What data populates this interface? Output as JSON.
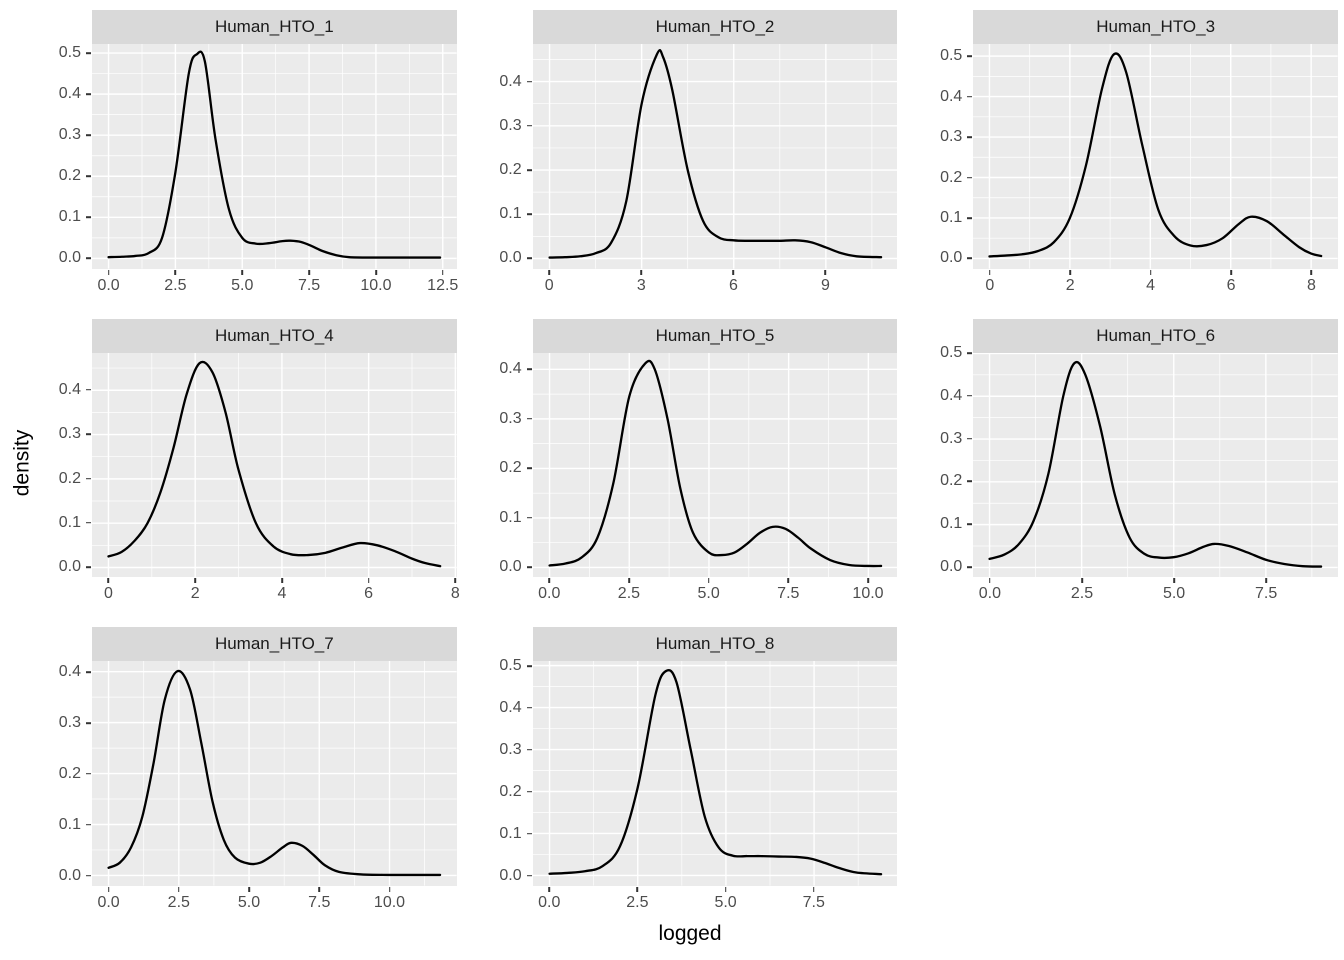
{
  "figure": {
    "x_axis_title": "logged",
    "y_axis_title": "density",
    "colors": {
      "page_bg": "#FFFFFF",
      "panel_bg": "#EBEBEB",
      "strip_bg": "#D9D9D9",
      "strip_text": "#1A1A1A",
      "grid": "#FFFFFF",
      "curve": "#000000",
      "tick_text": "#4D4D4D",
      "tick_mark": "#333333",
      "axis_title": "#000000"
    }
  },
  "chart_data": [
    {
      "type": "line",
      "title": "Human_HTO_1",
      "xlabel": "logged",
      "ylabel": "density",
      "x_range": [
        -0.62,
        13.02
      ],
      "y_range": [
        -0.025,
        0.522
      ],
      "x_tick_values": [
        0,
        2.5,
        5,
        7.5,
        10,
        12.5
      ],
      "x_tick_labels": [
        "0.0",
        "2.5",
        "5.0",
        "7.5",
        "10.0",
        "12.5"
      ],
      "x_minor_values": [
        1.25,
        3.75,
        6.25,
        8.75,
        11.25
      ],
      "y_tick_values": [
        0,
        0.1,
        0.2,
        0.3,
        0.4,
        0.5
      ],
      "y_tick_labels": [
        "0.0",
        "0.1",
        "0.2",
        "0.3",
        "0.4",
        "0.5"
      ],
      "y_minor_values": [
        0.05,
        0.15,
        0.25,
        0.35,
        0.45
      ],
      "x": [
        0,
        0.5,
        1,
        1.5,
        2,
        2.5,
        3,
        3.3,
        3.6,
        4,
        4.5,
        5,
        5.5,
        6,
        6.5,
        6.8,
        7.2,
        7.6,
        8,
        8.5,
        9,
        10,
        11,
        12.4
      ],
      "y": [
        0.003,
        0.004,
        0.006,
        0.013,
        0.05,
        0.21,
        0.45,
        0.497,
        0.48,
        0.29,
        0.12,
        0.05,
        0.036,
        0.037,
        0.042,
        0.043,
        0.04,
        0.03,
        0.018,
        0.008,
        0.003,
        0.002,
        0.002,
        0.002
      ]
    },
    {
      "type": "line",
      "title": "Human_HTO_2",
      "xlabel": "logged",
      "ylabel": "density",
      "x_range": [
        -0.54,
        11.34
      ],
      "y_range": [
        -0.023,
        0.485
      ],
      "x_tick_values": [
        0,
        3,
        6,
        9
      ],
      "x_tick_labels": [
        "0",
        "3",
        "6",
        "9"
      ],
      "x_minor_values": [
        1.5,
        4.5,
        7.5,
        10.5
      ],
      "y_tick_values": [
        0,
        0.1,
        0.2,
        0.3,
        0.4
      ],
      "y_tick_labels": [
        "0.0",
        "0.1",
        "0.2",
        "0.3",
        "0.4"
      ],
      "y_minor_values": [
        0.05,
        0.15,
        0.25,
        0.35,
        0.45
      ],
      "x": [
        0,
        0.5,
        1,
        1.5,
        2,
        2.5,
        3,
        3.5,
        3.7,
        4,
        4.5,
        5,
        5.5,
        6,
        6.5,
        7,
        7.5,
        8,
        8.5,
        9,
        9.5,
        10,
        10.8
      ],
      "y": [
        0.002,
        0.003,
        0.005,
        0.012,
        0.035,
        0.13,
        0.35,
        0.462,
        0.455,
        0.38,
        0.2,
        0.085,
        0.048,
        0.041,
        0.04,
        0.04,
        0.04,
        0.041,
        0.037,
        0.025,
        0.012,
        0.005,
        0.003
      ]
    },
    {
      "type": "line",
      "title": "Human_HTO_3",
      "xlabel": "logged",
      "ylabel": "density",
      "x_range": [
        -0.41,
        8.66
      ],
      "y_range": [
        -0.0253,
        0.53
      ],
      "x_tick_values": [
        0,
        2,
        4,
        6,
        8
      ],
      "x_tick_labels": [
        "0",
        "2",
        "4",
        "6",
        "8"
      ],
      "x_minor_values": [
        1,
        3,
        5,
        7
      ],
      "y_tick_values": [
        0,
        0.1,
        0.2,
        0.3,
        0.4,
        0.5
      ],
      "y_tick_labels": [
        "0.0",
        "0.1",
        "0.2",
        "0.3",
        "0.4",
        "0.5"
      ],
      "y_minor_values": [
        0.05,
        0.15,
        0.25,
        0.35,
        0.45
      ],
      "x": [
        0,
        0.4,
        0.8,
        1.2,
        1.6,
        2,
        2.4,
        2.8,
        3.1,
        3.4,
        3.8,
        4.2,
        4.6,
        5,
        5.4,
        5.8,
        6.2,
        6.5,
        6.9,
        7.3,
        7.7,
        8,
        8.25
      ],
      "y": [
        0.005,
        0.007,
        0.01,
        0.018,
        0.04,
        0.1,
        0.23,
        0.42,
        0.505,
        0.46,
        0.28,
        0.12,
        0.055,
        0.032,
        0.033,
        0.05,
        0.085,
        0.103,
        0.092,
        0.06,
        0.028,
        0.012,
        0.006
      ]
    },
    {
      "type": "line",
      "title": "Human_HTO_4",
      "xlabel": "logged",
      "ylabel": "density",
      "x_range": [
        -0.38,
        8.03
      ],
      "y_range": [
        -0.023,
        0.484
      ],
      "x_tick_values": [
        0,
        2,
        4,
        6,
        8
      ],
      "x_tick_labels": [
        "0",
        "2",
        "4",
        "6",
        "8"
      ],
      "x_minor_values": [
        1,
        3,
        5,
        7
      ],
      "y_tick_values": [
        0,
        0.1,
        0.2,
        0.3,
        0.4
      ],
      "y_tick_labels": [
        "0.0",
        "0.1",
        "0.2",
        "0.3",
        "0.4"
      ],
      "y_minor_values": [
        0.05,
        0.15,
        0.25,
        0.35,
        0.45
      ],
      "x": [
        0,
        0.3,
        0.6,
        0.9,
        1.2,
        1.5,
        1.8,
        2.1,
        2.4,
        2.7,
        3,
        3.4,
        3.8,
        4.2,
        4.6,
        5,
        5.4,
        5.8,
        6.2,
        6.6,
        7,
        7.3,
        7.65
      ],
      "y": [
        0.025,
        0.035,
        0.06,
        0.1,
        0.17,
        0.27,
        0.39,
        0.461,
        0.44,
        0.35,
        0.22,
        0.1,
        0.048,
        0.03,
        0.028,
        0.033,
        0.045,
        0.055,
        0.05,
        0.037,
        0.02,
        0.01,
        0.003
      ]
    },
    {
      "type": "line",
      "title": "Human_HTO_5",
      "xlabel": "logged",
      "ylabel": "density",
      "x_range": [
        -0.52,
        10.92
      ],
      "y_range": [
        -0.0206,
        0.433
      ],
      "x_tick_values": [
        0,
        2.5,
        5,
        7.5,
        10
      ],
      "x_tick_labels": [
        "0.0",
        "2.5",
        "5.0",
        "7.5",
        "10.0"
      ],
      "x_minor_values": [
        1.25,
        3.75,
        6.25,
        8.75
      ],
      "y_tick_values": [
        0,
        0.1,
        0.2,
        0.3,
        0.4
      ],
      "y_tick_labels": [
        "0.0",
        "0.1",
        "0.2",
        "0.3",
        "0.4"
      ],
      "y_minor_values": [
        0.05,
        0.15,
        0.25,
        0.35
      ],
      "x": [
        0,
        0.5,
        1,
        1.5,
        2,
        2.5,
        3,
        3.3,
        3.7,
        4.1,
        4.5,
        5,
        5.4,
        5.8,
        6.2,
        6.6,
        7,
        7.4,
        7.8,
        8.2,
        8.8,
        9.4,
        10,
        10.4
      ],
      "y": [
        0.004,
        0.008,
        0.02,
        0.06,
        0.17,
        0.345,
        0.412,
        0.4,
        0.3,
        0.16,
        0.07,
        0.03,
        0.025,
        0.03,
        0.048,
        0.07,
        0.082,
        0.078,
        0.06,
        0.038,
        0.015,
        0.005,
        0.003,
        0.003
      ]
    },
    {
      "type": "line",
      "title": "Human_HTO_6",
      "xlabel": "logged",
      "ylabel": "density",
      "x_range": [
        -0.45,
        9.45
      ],
      "y_range": [
        -0.0239,
        0.501
      ],
      "x_tick_values": [
        0,
        2.5,
        5,
        7.5
      ],
      "x_tick_labels": [
        "0.0",
        "2.5",
        "5.0",
        "7.5"
      ],
      "x_minor_values": [
        1.25,
        3.75,
        6.25,
        8.75
      ],
      "y_tick_values": [
        0,
        0.1,
        0.2,
        0.3,
        0.4,
        0.5
      ],
      "y_tick_labels": [
        "0.0",
        "0.1",
        "0.2",
        "0.3",
        "0.4",
        "0.5"
      ],
      "y_minor_values": [
        0.05,
        0.15,
        0.25,
        0.35,
        0.45
      ],
      "x": [
        0,
        0.4,
        0.8,
        1.2,
        1.6,
        2,
        2.3,
        2.6,
        3,
        3.4,
        3.8,
        4.2,
        4.6,
        5,
        5.4,
        5.8,
        6.1,
        6.5,
        7,
        7.5,
        8,
        8.5,
        9
      ],
      "y": [
        0.02,
        0.03,
        0.055,
        0.11,
        0.22,
        0.4,
        0.477,
        0.45,
        0.33,
        0.17,
        0.07,
        0.032,
        0.023,
        0.024,
        0.033,
        0.048,
        0.055,
        0.05,
        0.035,
        0.018,
        0.008,
        0.003,
        0.002
      ]
    },
    {
      "type": "line",
      "title": "Human_HTO_7",
      "xlabel": "logged",
      "ylabel": "density",
      "x_range": [
        -0.59,
        12.39
      ],
      "y_range": [
        -0.0201,
        0.421
      ],
      "x_tick_values": [
        0,
        2.5,
        5,
        7.5,
        10
      ],
      "x_tick_labels": [
        "0.0",
        "2.5",
        "5.0",
        "7.5",
        "10.0"
      ],
      "x_minor_values": [
        1.25,
        3.75,
        6.25,
        8.75,
        11.25
      ],
      "y_tick_values": [
        0,
        0.1,
        0.2,
        0.3,
        0.4
      ],
      "y_tick_labels": [
        "0.0",
        "0.1",
        "0.2",
        "0.3",
        "0.4"
      ],
      "y_minor_values": [
        0.05,
        0.15,
        0.25,
        0.35
      ],
      "x": [
        0,
        0.4,
        0.8,
        1.2,
        1.6,
        2,
        2.45,
        2.9,
        3.3,
        3.7,
        4.1,
        4.5,
        5,
        5.4,
        5.8,
        6.2,
        6.5,
        6.9,
        7.3,
        7.7,
        8.2,
        9,
        10,
        11,
        11.8
      ],
      "y": [
        0.015,
        0.025,
        0.055,
        0.115,
        0.22,
        0.345,
        0.401,
        0.365,
        0.26,
        0.145,
        0.07,
        0.035,
        0.023,
        0.025,
        0.038,
        0.055,
        0.064,
        0.058,
        0.04,
        0.02,
        0.007,
        0.002,
        0.001,
        0.001,
        0.001
      ]
    },
    {
      "type": "line",
      "title": "Human_HTO_8",
      "xlabel": "logged",
      "ylabel": "density",
      "x_range": [
        -0.47,
        9.87
      ],
      "y_range": [
        -0.0244,
        0.511
      ],
      "x_tick_values": [
        0,
        2.5,
        5,
        7.5
      ],
      "x_tick_labels": [
        "0.0",
        "2.5",
        "5.0",
        "7.5"
      ],
      "x_minor_values": [
        1.25,
        3.75,
        6.25,
        8.75
      ],
      "y_tick_values": [
        0,
        0.1,
        0.2,
        0.3,
        0.4,
        0.5
      ],
      "y_tick_labels": [
        "0.0",
        "0.1",
        "0.2",
        "0.3",
        "0.4",
        "0.5"
      ],
      "y_minor_values": [
        0.05,
        0.15,
        0.25,
        0.35,
        0.45
      ],
      "x": [
        0,
        0.5,
        1,
        1.5,
        2,
        2.5,
        3,
        3.3,
        3.6,
        4,
        4.4,
        4.8,
        5.2,
        5.6,
        6,
        6.5,
        7,
        7.4,
        7.8,
        8.2,
        8.7,
        9.4
      ],
      "y": [
        0.004,
        0.006,
        0.01,
        0.022,
        0.07,
        0.21,
        0.43,
        0.487,
        0.46,
        0.3,
        0.14,
        0.066,
        0.047,
        0.046,
        0.046,
        0.045,
        0.044,
        0.04,
        0.03,
        0.018,
        0.007,
        0.003
      ]
    }
  ]
}
